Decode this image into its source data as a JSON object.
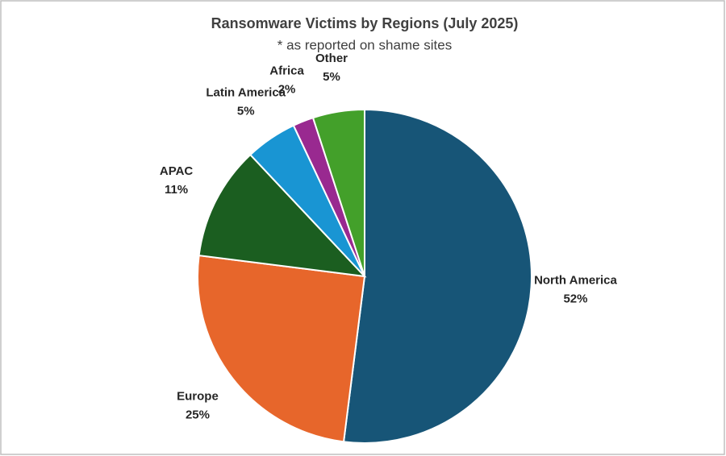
{
  "chart_data": {
    "type": "pie",
    "title": "Ransomware Victims by Regions (July 2025)",
    "subtitle": "* as reported on shame sites",
    "categories": [
      "North America",
      "Europe",
      "APAC",
      "Latin America",
      "Africa",
      "Other"
    ],
    "values": [
      52,
      25,
      11,
      5,
      2,
      5
    ],
    "value_labels": [
      "52%",
      "25%",
      "11%",
      "5%",
      "2%",
      "5%"
    ],
    "colors": [
      "#175577",
      "#e7662b",
      "#1b5e20",
      "#1995d3",
      "#992990",
      "#43a02a"
    ]
  }
}
